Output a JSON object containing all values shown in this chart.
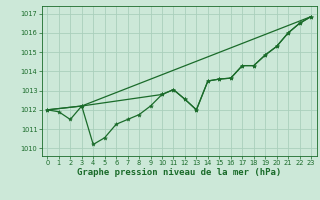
{
  "background_color": "#cce8d8",
  "grid_color": "#aacfbc",
  "line_color": "#1a6b2a",
  "marker_color": "#1a6b2a",
  "xlabel": "Graphe pression niveau de la mer (hPa)",
  "xlabel_fontsize": 6.5,
  "ylabel_ticks": [
    1010,
    1011,
    1012,
    1013,
    1014,
    1015,
    1016,
    1017
  ],
  "xlabel_ticks": [
    0,
    1,
    2,
    3,
    4,
    5,
    6,
    7,
    8,
    9,
    10,
    11,
    12,
    13,
    14,
    15,
    16,
    17,
    18,
    19,
    20,
    21,
    22,
    23
  ],
  "ylim": [
    1009.6,
    1017.4
  ],
  "xlim": [
    -0.5,
    23.5
  ],
  "series1_x": [
    0,
    1,
    2,
    3,
    4,
    5,
    6,
    7,
    8,
    9,
    10,
    11,
    12,
    13,
    14,
    15,
    16,
    17,
    18,
    19,
    20,
    21,
    22,
    23
  ],
  "series1_y": [
    1012.0,
    1011.9,
    1011.5,
    1012.2,
    1010.2,
    1010.55,
    1011.25,
    1011.5,
    1011.75,
    1012.2,
    1012.8,
    1013.05,
    1012.55,
    1012.0,
    1013.5,
    1013.6,
    1013.65,
    1014.3,
    1014.3,
    1014.85,
    1015.3,
    1016.0,
    1016.5,
    1016.85
  ],
  "series2_x": [
    0,
    3,
    10,
    11,
    12,
    13,
    14,
    15,
    16,
    17,
    18,
    19,
    20,
    21,
    22,
    23
  ],
  "series2_y": [
    1012.0,
    1012.2,
    1012.8,
    1013.05,
    1012.55,
    1012.0,
    1013.5,
    1013.6,
    1013.65,
    1014.3,
    1014.3,
    1014.85,
    1015.3,
    1016.0,
    1016.5,
    1016.85
  ],
  "series3_x": [
    0,
    3,
    23
  ],
  "series3_y": [
    1012.0,
    1012.2,
    1016.85
  ]
}
